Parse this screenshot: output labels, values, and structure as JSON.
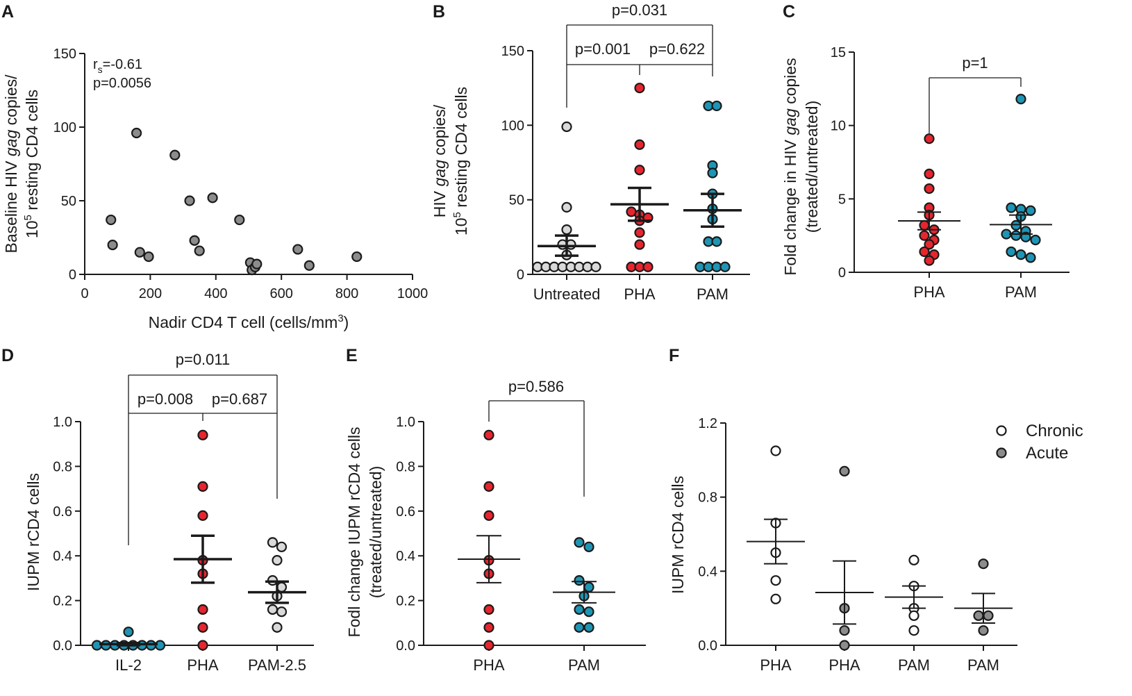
{
  "colors": {
    "gray_dark": "#8c8c8c",
    "gray_light": "#d9d9d9",
    "red": "#e8252e",
    "teal": "#1f95b5",
    "white": "#ffffff",
    "black": "#1a1a1a"
  },
  "chart_data": [
    {
      "id": "A",
      "letter": "A",
      "type": "scatter",
      "xlabel_pre": "Nadir CD4 T cell (cells/mm",
      "xlabel_sup": "3",
      "xlabel_post": ")",
      "ylabel_line1": "Baseline HIV gag copies/",
      "ylabel_line2_pre": "10",
      "ylabel_line2_sup": "5",
      "ylabel_line2_post": " resting CD4 cells",
      "xlim": [
        0,
        1000
      ],
      "ylim": [
        0,
        150
      ],
      "xticks": [
        "0",
        "200",
        "400",
        "600",
        "800",
        "1000"
      ],
      "yticks": [
        "0",
        "50",
        "100",
        "150"
      ],
      "rs_label": "r",
      "rs_sub": "s",
      "rs_value": "=-0.61",
      "p_text": "p=0.0056",
      "points": [
        {
          "x": 80,
          "y": 37
        },
        {
          "x": 85,
          "y": 20
        },
        {
          "x": 158,
          "y": 96
        },
        {
          "x": 168,
          "y": 15
        },
        {
          "x": 195,
          "y": 12
        },
        {
          "x": 275,
          "y": 81
        },
        {
          "x": 320,
          "y": 50
        },
        {
          "x": 335,
          "y": 23
        },
        {
          "x": 350,
          "y": 16
        },
        {
          "x": 390,
          "y": 52
        },
        {
          "x": 472,
          "y": 37
        },
        {
          "x": 505,
          "y": 8
        },
        {
          "x": 510,
          "y": 3
        },
        {
          "x": 520,
          "y": 5
        },
        {
          "x": 525,
          "y": 7
        },
        {
          "x": 650,
          "y": 17
        },
        {
          "x": 685,
          "y": 6
        },
        {
          "x": 830,
          "y": 12
        }
      ]
    },
    {
      "id": "B",
      "letter": "B",
      "type": "scatter",
      "ylabel_line1_pre": "HIV ",
      "ylabel_line1_it": "gag",
      "ylabel_line1_post": " copies/",
      "ylabel_line2_pre": "10",
      "ylabel_line2_sup": "5",
      "ylabel_line2_post": " resting CD4 cells",
      "ylim": [
        0,
        150
      ],
      "yticks": [
        "0",
        "50",
        "100",
        "150"
      ],
      "categories": [
        "Untreated",
        "PHA",
        "PAM"
      ],
      "groups": [
        {
          "name": "Untreated",
          "color_key": "gray_light",
          "mean": 19,
          "sem_low": 12.5,
          "sem_high": 26,
          "points": [
            5,
            5,
            5,
            5,
            5,
            5,
            5,
            5,
            13,
            20,
            20,
            30,
            45,
            99
          ]
        },
        {
          "name": "PHA",
          "color_key": "red",
          "mean": 47,
          "sem_low": 36,
          "sem_high": 58,
          "points": [
            5,
            5,
            5,
            20,
            28,
            36,
            38,
            40,
            42,
            70,
            87,
            125
          ]
        },
        {
          "name": "PAM",
          "color_key": "teal",
          "mean": 43,
          "sem_low": 32,
          "sem_high": 54,
          "points": [
            5,
            5,
            5,
            5,
            22,
            22,
            37,
            44,
            54,
            68,
            73,
            113,
            113
          ]
        }
      ],
      "pvalues": {
        "top": "p=0.031",
        "left": "p=0.001",
        "right": "p=0.622"
      }
    },
    {
      "id": "C",
      "letter": "C",
      "type": "scatter",
      "ylabel_line1_pre": "Fold change in HIV ",
      "ylabel_line1_it": "gag",
      "ylabel_line1_post": " copies",
      "ylabel_line2": "(treated/untreated)",
      "ylim": [
        0,
        15
      ],
      "yticks": [
        "0",
        "5",
        "10",
        "15"
      ],
      "categories": [
        "PHA",
        "PAM"
      ],
      "groups": [
        {
          "name": "PHA",
          "color_key": "red",
          "mean": 3.5,
          "sem_low": 2.9,
          "sem_high": 4.1,
          "points": [
            0.8,
            1.2,
            1.4,
            1.9,
            2.2,
            2.5,
            2.9,
            3.2,
            3.9,
            4.4,
            5.7,
            6.7,
            9.1
          ]
        },
        {
          "name": "PAM",
          "color_key": "teal",
          "mean": 3.25,
          "sem_low": 2.6,
          "sem_high": 3.9,
          "points": [
            1.0,
            1.2,
            1.4,
            2.2,
            2.4,
            2.5,
            2.6,
            2.8,
            3.2,
            3.8,
            4.2,
            4.3,
            4.4,
            11.8
          ]
        }
      ],
      "pvalues": {
        "top": "p=1"
      }
    },
    {
      "id": "D",
      "letter": "D",
      "type": "scatter",
      "ylabel": "IUPM rCD4 cells",
      "ylim": [
        0,
        1.0
      ],
      "yticks": [
        "0.0",
        "0.2",
        "0.4",
        "0.6",
        "0.8",
        "1.0"
      ],
      "categories": [
        "IL-2",
        "PHA",
        "PAM-2.5"
      ],
      "groups": [
        {
          "name": "IL-2",
          "color_key": "teal",
          "mean": 0.005,
          "sem_low": 0.0,
          "sem_high": 0.01,
          "points": [
            0,
            0,
            0,
            0,
            0,
            0,
            0,
            0,
            0.06
          ]
        },
        {
          "name": "PHA",
          "color_key": "red",
          "mean": 0.385,
          "sem_low": 0.28,
          "sem_high": 0.49,
          "points": [
            0,
            0.08,
            0.16,
            0.32,
            0.38,
            0.58,
            0.71,
            0.94
          ]
        },
        {
          "name": "PAM-2.5",
          "color_key": "gray_light",
          "mean": 0.237,
          "sem_low": 0.19,
          "sem_high": 0.285,
          "points": [
            0.08,
            0.15,
            0.16,
            0.22,
            0.26,
            0.29,
            0.38,
            0.44,
            0.46
          ]
        }
      ],
      "pvalues": {
        "top": "p=0.011",
        "left": "p=0.008",
        "right": "p=0.687"
      }
    },
    {
      "id": "E",
      "letter": "E",
      "type": "scatter",
      "ylabel_line1": "Fodl change IUPM rCD4 cells",
      "ylabel_line2": "(treated/untreated)",
      "ylim": [
        0,
        1.0
      ],
      "yticks": [
        "0.0",
        "0.2",
        "0.4",
        "0.6",
        "0.8",
        "1.0"
      ],
      "categories": [
        "PHA",
        "PAM"
      ],
      "groups": [
        {
          "name": "PHA",
          "color_key": "red",
          "mean": 0.385,
          "sem_low": 0.28,
          "sem_high": 0.49,
          "points": [
            0,
            0.08,
            0.16,
            0.32,
            0.38,
            0.58,
            0.71,
            0.94
          ]
        },
        {
          "name": "PAM",
          "color_key": "teal",
          "mean": 0.237,
          "sem_low": 0.19,
          "sem_high": 0.285,
          "points": [
            0.08,
            0.08,
            0.15,
            0.16,
            0.22,
            0.26,
            0.29,
            0.44,
            0.46
          ]
        }
      ],
      "pvalues": {
        "top": "p=0.586"
      }
    },
    {
      "id": "F",
      "letter": "F",
      "type": "scatter",
      "ylabel": "IUPM rCD4 cells",
      "ylim": [
        0,
        1.2
      ],
      "yticks": [
        "0.0",
        "0.4",
        "0.8",
        "1.2"
      ],
      "categories": [
        "PHA",
        "PHA",
        "PAM",
        "PAM"
      ],
      "legend": [
        {
          "label": "Chronic",
          "color_key": "white"
        },
        {
          "label": "Acute",
          "color_key": "gray_dark"
        }
      ],
      "groups": [
        {
          "name": "PHA",
          "color_key": "white",
          "mean": 0.56,
          "sem_low": 0.44,
          "sem_high": 0.68,
          "points": [
            0.25,
            0.35,
            0.5,
            0.66,
            1.05
          ]
        },
        {
          "name": "PHA",
          "color_key": "gray_dark",
          "mean": 0.285,
          "sem_low": 0.115,
          "sem_high": 0.455,
          "points": [
            0,
            0.08,
            0.2,
            0.94
          ]
        },
        {
          "name": "PAM",
          "color_key": "white",
          "mean": 0.26,
          "sem_low": 0.2,
          "sem_high": 0.32,
          "points": [
            0.08,
            0.16,
            0.2,
            0.32,
            0.46
          ]
        },
        {
          "name": "PAM",
          "color_key": "gray_dark",
          "mean": 0.2,
          "sem_low": 0.12,
          "sem_high": 0.28,
          "points": [
            0.08,
            0.16,
            0.16,
            0.44
          ]
        }
      ]
    }
  ]
}
